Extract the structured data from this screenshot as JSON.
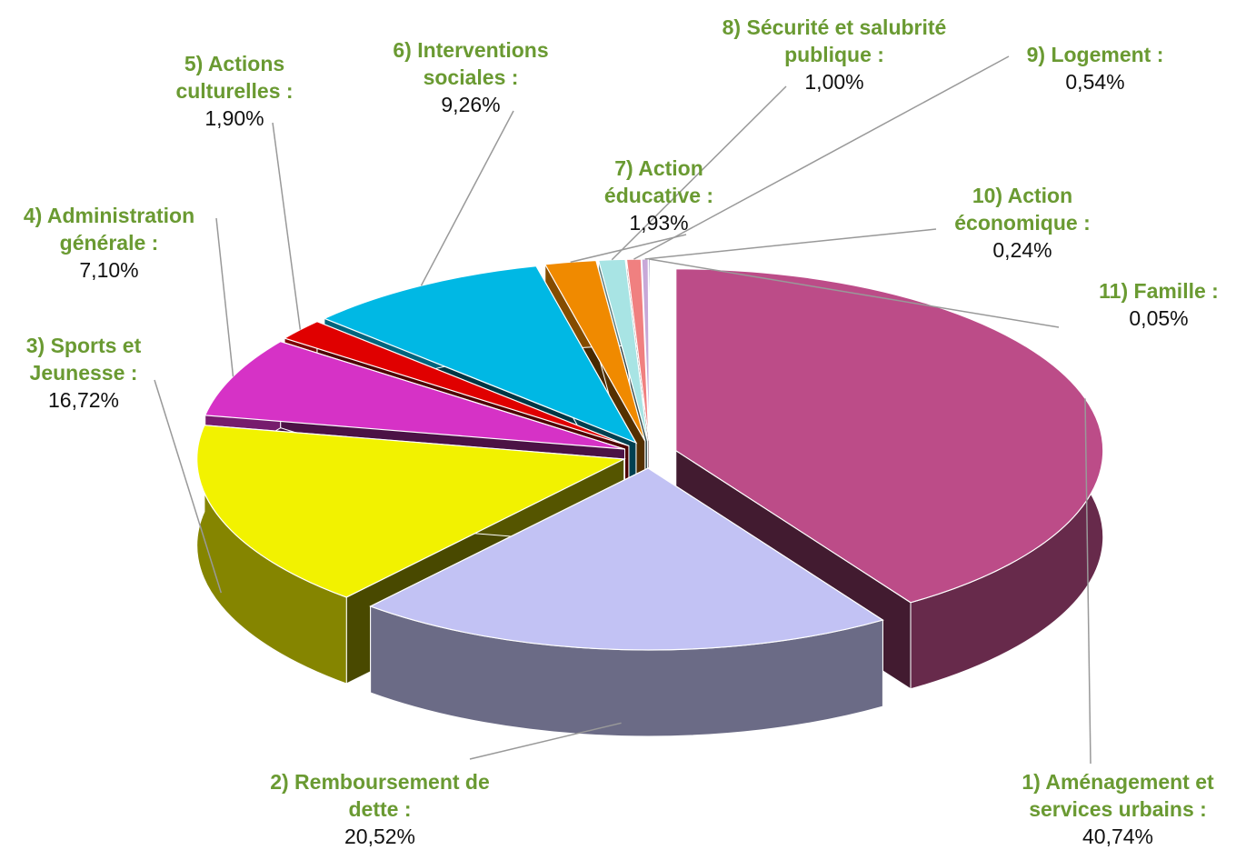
{
  "chart_data": {
    "type": "pie3d",
    "categories": [
      "1) Aménagement et services urbains :",
      "2) Remboursement de dette :",
      "3) Sports et Jeunesse :",
      "4) Administration générale :",
      "5) Actions culturelles :",
      "6) Interventions sociales :",
      "7) Action éducative :",
      "8) Sécurité et salubrité publique :",
      "9) Logement :",
      "10) Action économique :",
      "11) Famille :"
    ],
    "values": [
      40.74,
      20.52,
      16.72,
      7.1,
      1.9,
      9.26,
      1.93,
      1.0,
      0.54,
      0.24,
      0.05
    ],
    "value_labels": [
      "40,74%",
      "20,52%",
      "16,72%",
      "7,10%",
      "1,90%",
      "9,26%",
      "1,93%",
      "1,00%",
      "0,54%",
      "0,24%",
      "0,05%"
    ],
    "colors": [
      "#bc4c88",
      "#c2c2f4",
      "#f2f200",
      "#d632c6",
      "#e00000",
      "#00b8e4",
      "#f08a00",
      "#a8e4e4",
      "#f08080",
      "#c8a8d8",
      "#00005c"
    ]
  }
}
